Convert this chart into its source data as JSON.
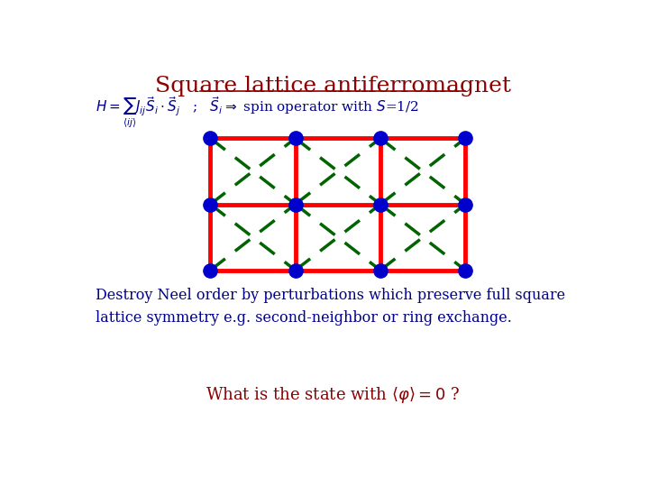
{
  "title": "Square lattice antiferromagnet",
  "title_color": "#8B0000",
  "title_fontsize": 18,
  "bg_color": "#FFFFFF",
  "lattice_cols": 4,
  "lattice_rows": 3,
  "node_color": "#0000CD",
  "nn_color": "#FF0000",
  "nn_linewidth": 3.5,
  "nnn_color": "#006400",
  "nnn_linewidth": 2.5,
  "formula_color": "#00008B",
  "text_color": "#00008B",
  "bottom_text_color": "#8B0000",
  "destroy_text": "Destroy Neel order by perturbations which preserve full square\nlattice symmetry e.g. second-neighbor or ring exchange.",
  "bottom_eq_text": "What is the state with $\\langle\\varphi\\rangle = 0$ ?",
  "formula_text": "$H = \\sum_{\\langle ij \\rangle} J_{ij} \\vec{S}_i \\cdot \\vec{S}_j$   ;   $\\vec{S}_i \\Rightarrow$ spin operator with $S$=1/2"
}
